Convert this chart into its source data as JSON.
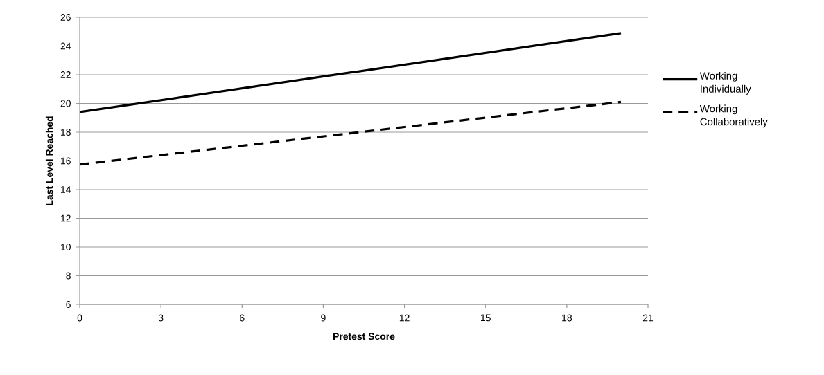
{
  "chart_data": {
    "type": "line",
    "xlabel": "Pretest Score",
    "ylabel": "Last Level Reached",
    "x": [
      0,
      20
    ],
    "series": [
      {
        "name": "Working Individually",
        "color": "#000000",
        "line_style": "solid",
        "values": [
          19.4,
          24.9
        ]
      },
      {
        "name": "Working Collaboratively",
        "color": "#000000",
        "line_style": "dashed",
        "values": [
          15.75,
          20.1
        ]
      }
    ],
    "xlim": [
      0,
      21
    ],
    "xticks": [
      0,
      3,
      6,
      9,
      12,
      15,
      18,
      21
    ],
    "ylim": [
      6,
      26
    ],
    "yticks": [
      6,
      8,
      10,
      12,
      14,
      16,
      18,
      20,
      22,
      24,
      26
    ],
    "grid": "y",
    "legend": "right",
    "marker": "none"
  }
}
